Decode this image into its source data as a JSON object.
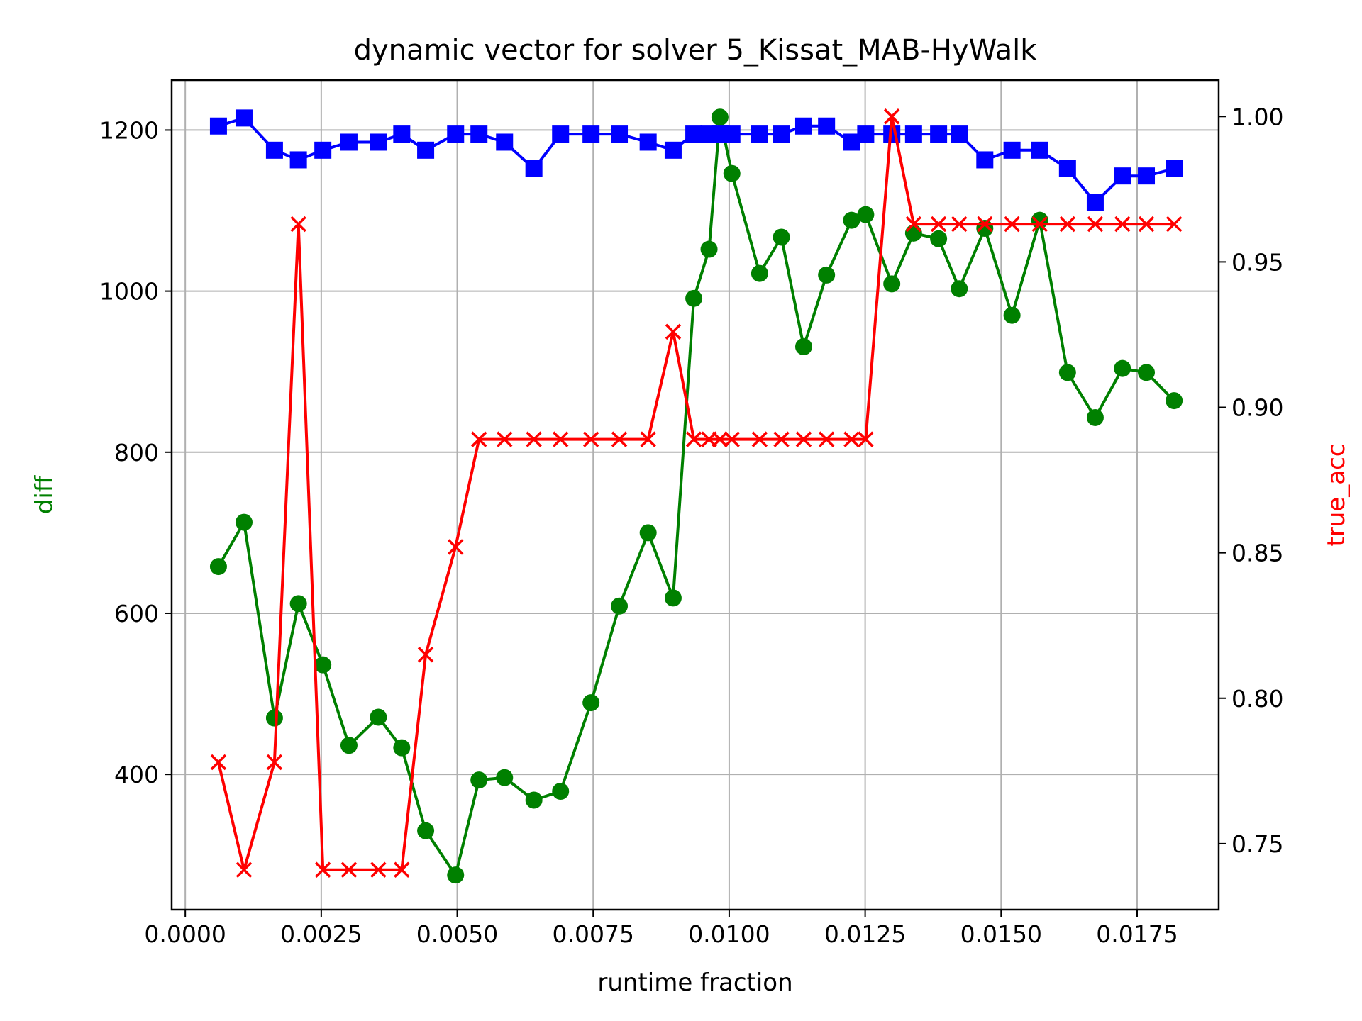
{
  "chart_data": {
    "type": "line",
    "title": "dynamic vector for solver 5_Kissat_MAB-HyWalk",
    "xlabel": "runtime fraction",
    "ylabel_left": "diff",
    "ylabel_right": "true_acc",
    "xlim": [
      -0.00025,
      0.019
    ],
    "ylim_left": [
      232,
      1262
    ],
    "ylim_right": [
      0.7273,
      1.0125
    ],
    "x_ticks": [
      0.0,
      0.0025,
      0.005,
      0.0075,
      0.01,
      0.0125,
      0.015,
      0.0175
    ],
    "x_tick_labels": [
      "0.0000",
      "0.0025",
      "0.0050",
      "0.0075",
      "0.0100",
      "0.0125",
      "0.0150",
      "0.0175"
    ],
    "y_left_ticks": [
      400,
      600,
      800,
      1000,
      1200
    ],
    "y_left_tick_labels": [
      "400",
      "600",
      "800",
      "1000",
      "1200"
    ],
    "y_right_ticks": [
      0.75,
      0.8,
      0.85,
      0.9,
      0.95,
      1.0
    ],
    "y_right_tick_labels": [
      "0.75",
      "0.80",
      "0.85",
      "0.90",
      "0.95",
      "1.00"
    ],
    "grid": true,
    "colors": {
      "diff": "#008000",
      "true_acc": "#ff0000",
      "blue_series": "#0000ff"
    },
    "series": [
      {
        "key": "diff",
        "axis": "left",
        "marker": "circle",
        "color": "#008000",
        "x": [
          0.00061,
          0.00108,
          0.00164,
          0.00208,
          0.00253,
          0.00301,
          0.00355,
          0.00398,
          0.00442,
          0.00497,
          0.0054,
          0.00587,
          0.00641,
          0.0069,
          0.00746,
          0.00798,
          0.00851,
          0.00897,
          0.00935,
          0.00963,
          0.00983,
          0.01005,
          0.01056,
          0.01096,
          0.01137,
          0.01179,
          0.01225,
          0.01251,
          0.01299,
          0.01339,
          0.01385,
          0.01423,
          0.0147,
          0.0152,
          0.01571,
          0.01622,
          0.01673,
          0.01723,
          0.01767,
          0.01818
        ],
        "values": [
          658,
          713,
          470,
          612,
          536,
          436,
          471,
          433,
          330,
          275,
          393,
          396,
          368,
          379,
          489,
          609,
          700,
          619,
          991,
          1052,
          1216,
          1146,
          1022,
          1067,
          931,
          1020,
          1088,
          1095,
          1009,
          1072,
          1065,
          1003,
          1078,
          970,
          1088,
          899,
          843,
          904,
          899,
          864
        ]
      },
      {
        "key": "blue",
        "axis": "left",
        "marker": "square",
        "color": "#0000ff",
        "x": [
          0.00061,
          0.00108,
          0.00164,
          0.00208,
          0.00253,
          0.00301,
          0.00355,
          0.00398,
          0.00442,
          0.00497,
          0.0054,
          0.00587,
          0.00641,
          0.0069,
          0.00746,
          0.00798,
          0.00851,
          0.00897,
          0.00935,
          0.00963,
          0.00983,
          0.01005,
          0.01056,
          0.01096,
          0.01137,
          0.01179,
          0.01225,
          0.01251,
          0.01299,
          0.01339,
          0.01385,
          0.01423,
          0.0147,
          0.0152,
          0.01571,
          0.01622,
          0.01673,
          0.01723,
          0.01767,
          0.01818
        ],
        "values": [
          1205,
          1215,
          1175,
          1163,
          1175,
          1185,
          1185,
          1195,
          1175,
          1195,
          1195,
          1185,
          1152,
          1195,
          1195,
          1195,
          1185,
          1175,
          1195,
          1195,
          1195,
          1195,
          1195,
          1195,
          1205,
          1205,
          1185,
          1195,
          1195,
          1195,
          1195,
          1195,
          1163,
          1175,
          1175,
          1152,
          1110,
          1143,
          1143,
          1152
        ]
      },
      {
        "key": "true_acc",
        "axis": "right",
        "marker": "x",
        "color": "#ff0000",
        "x": [
          0.00061,
          0.00108,
          0.00164,
          0.00208,
          0.00253,
          0.00301,
          0.00355,
          0.00398,
          0.00442,
          0.00497,
          0.0054,
          0.00587,
          0.00641,
          0.0069,
          0.00746,
          0.00798,
          0.00851,
          0.00897,
          0.00935,
          0.00963,
          0.00983,
          0.01005,
          0.01056,
          0.01096,
          0.01137,
          0.01179,
          0.01225,
          0.01251,
          0.01299,
          0.01339,
          0.01385,
          0.01423,
          0.0147,
          0.0152,
          0.01571,
          0.01622,
          0.01673,
          0.01723,
          0.01767,
          0.01818
        ],
        "values": [
          0.778,
          0.741,
          0.778,
          0.963,
          0.741,
          0.741,
          0.741,
          0.741,
          0.815,
          0.852,
          0.889,
          0.889,
          0.889,
          0.889,
          0.889,
          0.889,
          0.889,
          0.926,
          0.889,
          0.889,
          0.889,
          0.889,
          0.889,
          0.889,
          0.889,
          0.889,
          0.889,
          0.889,
          1.0,
          0.963,
          0.963,
          0.963,
          0.963,
          0.963,
          0.963,
          0.963,
          0.963,
          0.963,
          0.963,
          0.963
        ]
      }
    ]
  }
}
